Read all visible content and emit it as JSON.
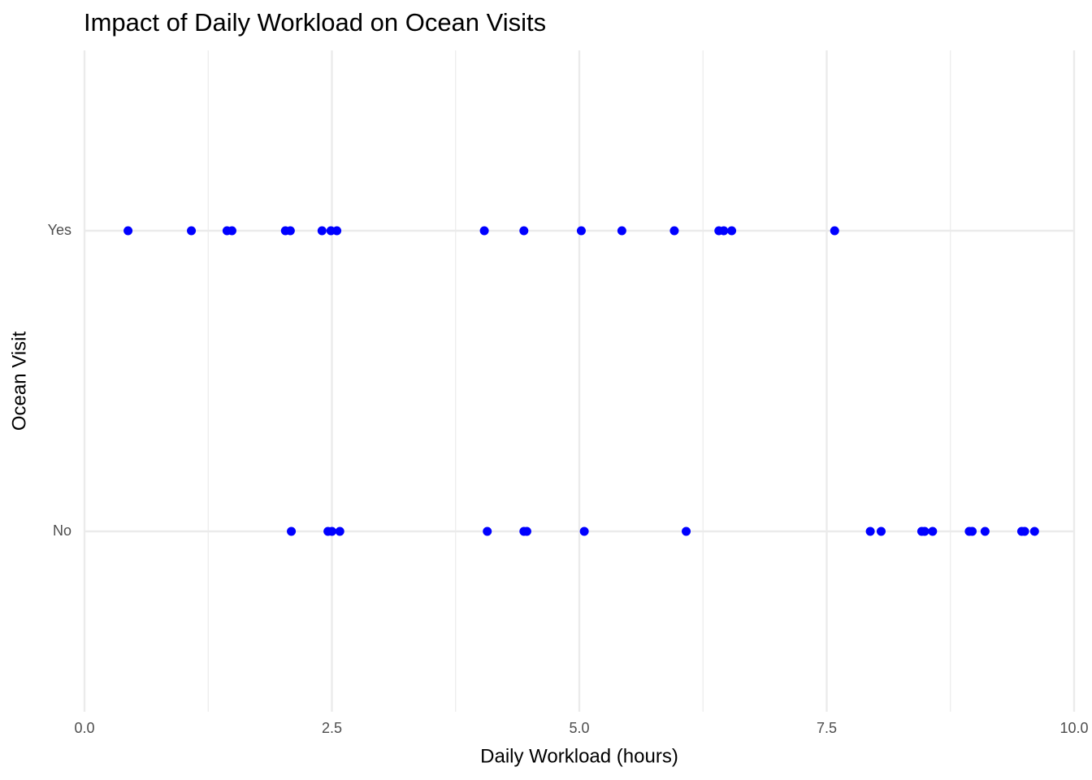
{
  "chart_data": {
    "type": "scatter",
    "title": "Impact of Daily Workload on Ocean Visits",
    "x_label": "Daily Workload (hours)",
    "y_label": "Ocean Visit",
    "color": "#0000ff",
    "groups": [
      {
        "name": "No",
        "values": [
          2.09,
          2.46,
          2.5,
          2.58,
          4.07,
          4.44,
          4.47,
          5.05,
          6.08,
          7.94,
          8.05,
          8.46,
          8.49,
          8.57,
          8.94,
          8.97,
          9.1,
          9.47,
          9.5,
          9.6
        ]
      },
      {
        "name": "Yes",
        "values": [
          0.44,
          1.08,
          1.44,
          1.49,
          2.03,
          2.08,
          2.4,
          2.49,
          2.55,
          4.04,
          4.44,
          5.02,
          5.43,
          5.96,
          6.41,
          6.46,
          6.54,
          7.58
        ]
      }
    ],
    "xlim": [
      0,
      10
    ],
    "xticks": [
      {
        "value": 0,
        "label": "0.0"
      },
      2.5,
      {
        "value": 5,
        "label": "5.0"
      },
      7.5,
      {
        "value": 10,
        "label": "10.0"
      }
    ],
    "xminor": [
      1.25,
      3.75,
      6.25,
      8.75
    ],
    "grid": true
  }
}
